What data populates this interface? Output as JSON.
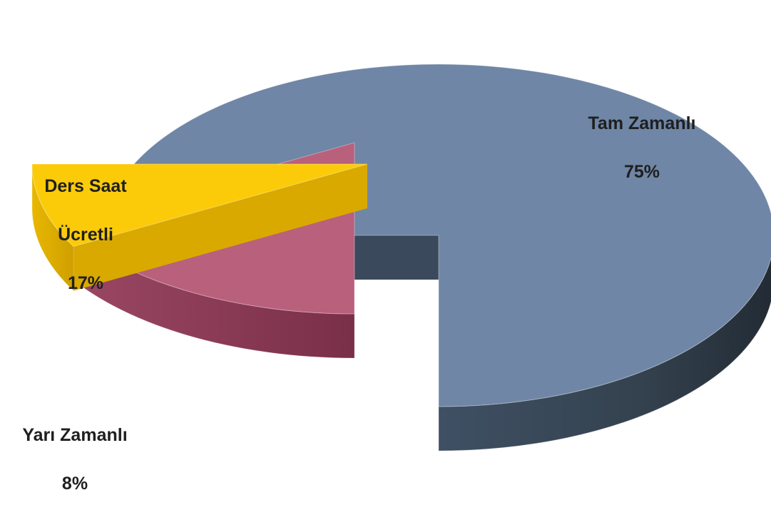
{
  "chart_data": {
    "type": "pie",
    "title": "",
    "slices": [
      {
        "label": "Tam Zamanlı",
        "value": 75,
        "value_text": "75%",
        "color": "#667d9c",
        "side_color": "#3a4a5c",
        "top_color": "#6f86a6"
      },
      {
        "label": "Ders Saat Ücretli",
        "label_lines": [
          "Ders Saat",
          "Ücretli"
        ],
        "value": 17,
        "value_text": "17%",
        "color": "#b05673",
        "side_color": "#8a3b56",
        "top_color": "#b9607d"
      },
      {
        "label": "Yarı Zamanlı",
        "value": 8,
        "value_text": "8%",
        "color": "#f7c403",
        "side_color": "#d9a900",
        "top_color": "#fbcb09"
      }
    ],
    "style": "3d-exploded",
    "legend": "none"
  }
}
